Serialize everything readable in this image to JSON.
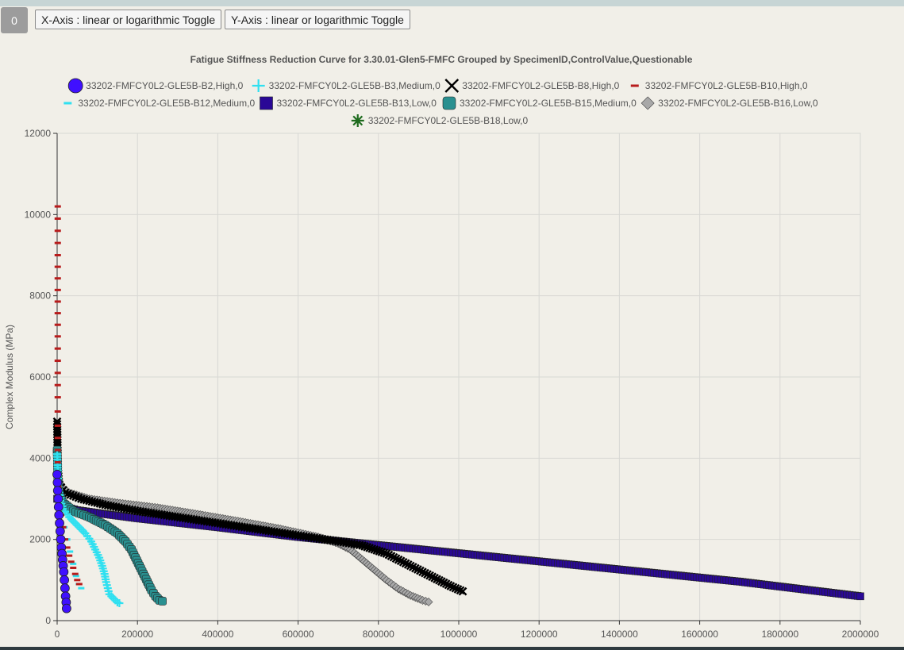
{
  "toolbar": {
    "counter_label": "0",
    "x_toggle_label": "X-Axis : linear or logarithmic Toggle",
    "y_toggle_label": "Y-Axis : linear or logarithmic Toggle"
  },
  "chart_data": {
    "type": "scatter",
    "title": "Fatigue Stiffness Reduction Curve for 3.30.01-Glen5-FMFC Grouped by SpecimenID,ControlValue,Questionable",
    "xlabel": "",
    "ylabel": "Complex Modulus (MPa)",
    "xlim": [
      0,
      2000000
    ],
    "ylim": [
      0,
      12000
    ],
    "x_ticks": [
      "0",
      "200000",
      "400000",
      "600000",
      "800000",
      "1000000",
      "1200000",
      "1400000",
      "1600000",
      "1800000",
      "2000000"
    ],
    "y_ticks": [
      "0",
      "2000",
      "4000",
      "6000",
      "8000",
      "10000",
      "12000"
    ],
    "grid": true,
    "legend_position": "top",
    "series": [
      {
        "name": "33202-FMFCY0L2-GLE5B-B2,High,0",
        "color": "#4010ff",
        "marker": "circle",
        "x": [
          0,
          800,
          1500,
          2500,
          3500,
          4500,
          6000,
          7500,
          9000,
          10500,
          12000,
          13500,
          15000,
          16500,
          18000,
          19500,
          21000,
          22500,
          23500
        ],
        "y": [
          3600,
          3400,
          3200,
          3000,
          2800,
          2600,
          2400,
          2200,
          2000,
          1800,
          1650,
          1500,
          1350,
          1200,
          1000,
          800,
          600,
          450,
          300
        ]
      },
      {
        "name": "33202-FMFCY0L2-GLE5B-B3,Medium,0",
        "color": "#30e0f0",
        "marker": "plus",
        "x": [
          0,
          3000,
          8000,
          15000,
          30000,
          50000,
          70000,
          85000,
          95000,
          105000,
          112000,
          118000,
          122000,
          126000,
          130000,
          140000,
          150000,
          155000
        ],
        "y": [
          4100,
          3300,
          2950,
          2750,
          2550,
          2350,
          2150,
          1950,
          1750,
          1550,
          1350,
          1150,
          950,
          800,
          650,
          550,
          450,
          430
        ]
      },
      {
        "name": "33202-FMFCY0L2-GLE5B-B8,High,0",
        "color": "#000000",
        "marker": "cross",
        "x": [
          0,
          1000,
          2000,
          5000,
          20000,
          60000,
          120000,
          200000,
          300000,
          400000,
          500000,
          600000,
          700000,
          760000,
          820000,
          880000,
          940000,
          980000,
          1010000
        ],
        "y": [
          4900,
          4200,
          3700,
          3350,
          3150,
          3000,
          2850,
          2700,
          2550,
          2400,
          2250,
          2100,
          1950,
          1850,
          1650,
          1350,
          1050,
          850,
          720
        ]
      },
      {
        "name": "33202-FMFCY0L2-GLE5B-B10,High,0",
        "color": "#b81c1c",
        "marker": "dash",
        "x": [
          1500,
          1500,
          1500,
          1500,
          1500,
          1500,
          1500,
          5000,
          10000,
          15000,
          20000,
          25000,
          30000,
          35000,
          40000,
          45000,
          50000,
          55000
        ],
        "y": [
          10200,
          9000,
          7000,
          5500,
          4800,
          4200,
          3600,
          3000,
          2600,
          2300,
          2000,
          1800,
          1600,
          1450,
          1300,
          1150,
          1000,
          900
        ]
      },
      {
        "name": "33202-FMFCY0L2-GLE5B-B12,Medium,0",
        "color": "#30e0f0",
        "marker": "dash",
        "x": [
          0,
          4000,
          10000,
          18000,
          25000,
          32000,
          40000,
          47000,
          54000,
          60000
        ],
        "y": [
          3500,
          2900,
          2600,
          2300,
          2000,
          1700,
          1400,
          1100,
          900,
          800
        ]
      },
      {
        "name": "33202-FMFCY0L2-GLE5B-B13,Low,0",
        "color": "#2a0896",
        "marker": "square",
        "x": [
          0,
          5000,
          20000,
          50000,
          100000,
          200000,
          300000,
          400000,
          500000,
          600000,
          700000,
          800000,
          900000,
          1000000,
          1100000,
          1200000,
          1300000,
          1400000,
          1500000,
          1600000,
          1700000,
          1800000,
          1900000,
          2000000
        ],
        "y": [
          3000,
          2900,
          2800,
          2720,
          2650,
          2520,
          2410,
          2300,
          2180,
          2060,
          1960,
          1860,
          1760,
          1660,
          1560,
          1460,
          1360,
          1260,
          1160,
          1060,
          960,
          840,
          720,
          600
        ]
      },
      {
        "name": "33202-FMFCY0L2-GLE5B-B15,Medium,0",
        "color": "#2a9090",
        "marker": "roundsquare",
        "x": [
          0,
          2000,
          6000,
          15000,
          40000,
          80000,
          120000,
          150000,
          170000,
          185000,
          195000,
          205000,
          215000,
          225000,
          235000,
          245000,
          255000,
          262000
        ],
        "y": [
          4200,
          3400,
          3100,
          2900,
          2700,
          2550,
          2350,
          2150,
          1950,
          1750,
          1550,
          1350,
          1150,
          950,
          750,
          600,
          500,
          480
        ]
      },
      {
        "name": "33202-FMFCY0L2-GLE5B-B16,Low,0",
        "color": "#a8a8a8",
        "marker": "diamond",
        "x": [
          0,
          3000,
          10000,
          30000,
          80000,
          150000,
          250000,
          350000,
          450000,
          550000,
          650000,
          700000,
          730000,
          760000,
          790000,
          820000,
          850000,
          880000,
          910000,
          925000
        ],
        "y": [
          4200,
          3500,
          3300,
          3150,
          3000,
          2900,
          2780,
          2620,
          2450,
          2270,
          2060,
          1900,
          1750,
          1500,
          1250,
          1000,
          780,
          620,
          500,
          460
        ]
      },
      {
        "name": "33202-FMFCY0L2-GLE5B-B18,Low,0",
        "color": "#1e6b1e",
        "marker": "asterisk",
        "x": [],
        "y": []
      }
    ]
  }
}
